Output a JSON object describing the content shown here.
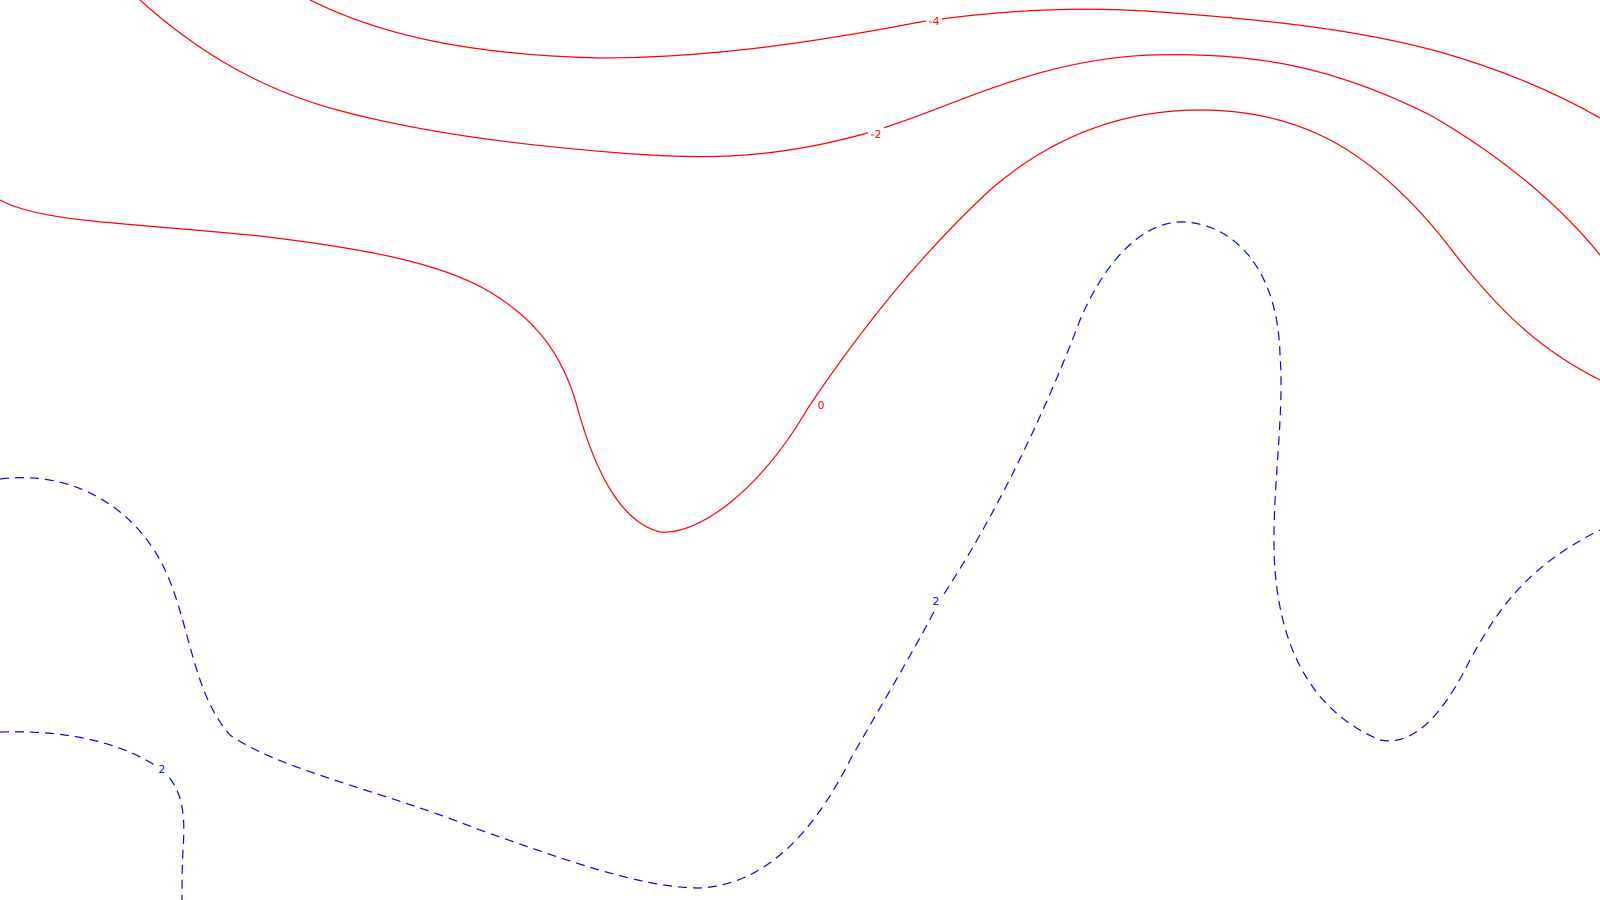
{
  "map": {
    "contour_levels": [
      {
        "id": "minus4",
        "value": -4,
        "label": "-4",
        "color": "#ff0000",
        "style": "solid"
      },
      {
        "id": "minus2",
        "value": -2,
        "label": "-2",
        "color": "#ff0000",
        "style": "solid"
      },
      {
        "id": "zero",
        "value": 0,
        "label": "0",
        "color": "#ff0000",
        "style": "solid"
      },
      {
        "id": "plus2-right",
        "value": 2,
        "label": "2",
        "color": "#0000ff",
        "style": "dashed"
      },
      {
        "id": "plus2-left",
        "value": 2,
        "label": "2",
        "color": "#0000ff",
        "style": "dashed"
      }
    ],
    "colors": {
      "negative": "#ff0000",
      "positive": "#0000ff",
      "background": "#ffffff"
    }
  }
}
